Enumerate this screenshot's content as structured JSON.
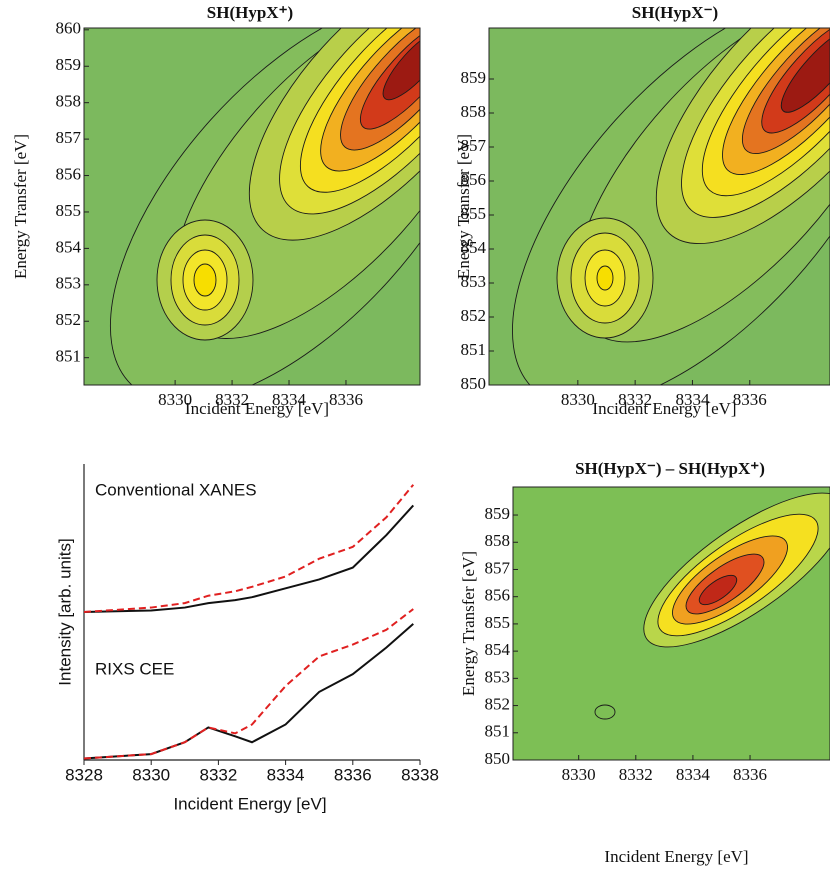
{
  "chart_data": [
    {
      "type": "contour",
      "title": "SH(HypX⁺)",
      "xlabel": "Incident Energy [eV]",
      "ylabel": "Energy Transfer [eV]",
      "xlim": [
        8326.8,
        8338.6
      ],
      "ylim": [
        850.25,
        860.05
      ],
      "xticks": [
        8330,
        8332,
        8334,
        8336
      ],
      "yticks": [
        851,
        852,
        853,
        854,
        855,
        856,
        857,
        858,
        859,
        860
      ]
    },
    {
      "type": "contour",
      "title": "SH(HypX⁻)",
      "xlabel": "Incident Energy [eV]",
      "ylabel": "Energy Transfer [eV]",
      "xlim": [
        8326.9,
        8338.8
      ],
      "ylim": [
        850,
        860.5
      ],
      "xticks": [
        8330,
        8332,
        8334,
        8336
      ],
      "yticks": [
        850,
        851,
        852,
        853,
        854,
        855,
        856,
        857,
        858,
        859
      ]
    },
    {
      "type": "line",
      "xlabel": "Incident Energy [eV]",
      "ylabel": "Intensity [arb. units]",
      "annotations": [
        "Conventional XANES",
        "RIXS CEE"
      ],
      "xlim": [
        8328,
        8338
      ],
      "ylim": [
        0,
        10
      ],
      "xticks": [
        8328,
        8330,
        8332,
        8334,
        8336,
        8338
      ],
      "x": [
        8328,
        8330,
        8331,
        8331.7,
        8332.5,
        8333,
        8334,
        8335,
        8336,
        8337,
        8337.8
      ],
      "series": [
        {
          "color": "#111111",
          "dash": false,
          "values": [
            5.0,
            5.05,
            5.15,
            5.3,
            5.4,
            5.5,
            5.8,
            6.1,
            6.5,
            7.6,
            8.6
          ]
        },
        {
          "color": "#e02020",
          "dash": true,
          "values": [
            5.0,
            5.15,
            5.3,
            5.55,
            5.7,
            5.85,
            6.2,
            6.8,
            7.2,
            8.2,
            9.3
          ]
        },
        {
          "color": "#111111",
          "dash": false,
          "values": [
            0.05,
            0.2,
            0.6,
            1.1,
            0.8,
            0.6,
            1.2,
            2.3,
            2.9,
            3.8,
            4.6
          ]
        },
        {
          "color": "#e02020",
          "dash": true,
          "values": [
            0.05,
            0.2,
            0.6,
            1.1,
            0.9,
            1.2,
            2.5,
            3.5,
            3.9,
            4.4,
            5.1
          ]
        }
      ]
    },
    {
      "type": "contour",
      "title": "SH(HypX⁻) – SH(HypX⁺)",
      "xlabel": "Incident Energy [eV]",
      "ylabel": "Energy Transfer [eV]",
      "xlim": [
        8327.7,
        8338.8
      ],
      "ylim": [
        850,
        860.03
      ],
      "xticks": [
        8330,
        8332,
        8334,
        8336
      ],
      "yticks": [
        850,
        851,
        852,
        853,
        854,
        855,
        856,
        857,
        858,
        859
      ]
    }
  ]
}
